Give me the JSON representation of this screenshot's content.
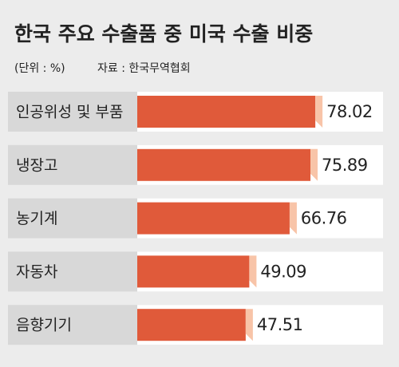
{
  "chart_data": {
    "type": "bar",
    "orientation": "horizontal",
    "title": "한국 주요 수출품 중 미국 수출 비중",
    "unit_note": "(단위 : %)",
    "source": "자료 : 한국무역협회",
    "categories": [
      "인공위성 및 부품",
      "냉장고",
      "농기계",
      "자동차",
      "음향기기"
    ],
    "values": [
      78.02,
      75.89,
      66.76,
      49.09,
      47.51
    ],
    "color": "#e05a3a",
    "xlim": [
      0,
      100
    ]
  }
}
